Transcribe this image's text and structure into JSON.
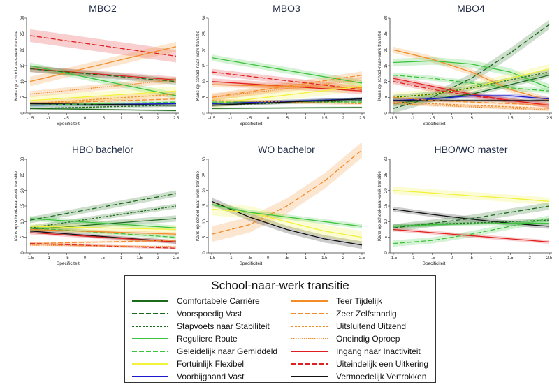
{
  "legend": {
    "title": "School-naar-werk transitie",
    "items": [
      {
        "name": "Comfortabele Carrière",
        "color": "#1b6b1b",
        "dash": "solid"
      },
      {
        "name": "Voorspoedig Vast",
        "color": "#1b6b1b",
        "dash": "long"
      },
      {
        "name": "Stapvoets naar Stabiliteit",
        "color": "#1b6b1b",
        "dash": "short"
      },
      {
        "name": "Reguliere Route",
        "color": "#3cc23c",
        "dash": "solid"
      },
      {
        "name": "Geleidelijk naar Gemiddeld",
        "color": "#3cc23c",
        "dash": "long"
      },
      {
        "name": "Fortuinlijk Flexibel",
        "color": "#f2f23a",
        "dash": "solid"
      },
      {
        "name": "Voorbijgaand Vast",
        "color": "#1a1acc",
        "dash": "solid"
      },
      {
        "name": "Teer Tijdelijk",
        "color": "#f28c28",
        "dash": "solid"
      },
      {
        "name": "Zeer Zelfstandig",
        "color": "#f28c28",
        "dash": "long"
      },
      {
        "name": "Uitsluitend Uitzend",
        "color": "#f28c28",
        "dash": "short"
      },
      {
        "name": "Oneindig Oproep",
        "color": "#f28c28",
        "dash": "dot"
      },
      {
        "name": "Ingang naar Inactiviteit",
        "color": "#e02020",
        "dash": "solid"
      },
      {
        "name": "Uiteindelijk een Uitkering",
        "color": "#e02020",
        "dash": "long"
      },
      {
        "name": "Vermoedelijk Vertrokken",
        "color": "#111111",
        "dash": "solid"
      }
    ]
  },
  "chart_data": [
    {
      "type": "line",
      "title": "MBO2",
      "xlabel": "Specificiteit",
      "ylabel": "Kans op school-naar-werk transitie",
      "xlim": [
        -1.5,
        2.5
      ],
      "ylim": [
        0,
        30
      ],
      "xticks": [
        "-1.5",
        "-1",
        "-.5",
        "0",
        ".5",
        "1",
        "1.5",
        "2",
        "2.5"
      ],
      "yticks": [
        "0",
        "5",
        "10",
        "15",
        "20",
        "25",
        "30"
      ],
      "x": [
        -1.5,
        2.5
      ],
      "series": [
        {
          "name": "Uiteindelijk een Uitkering",
          "values": [
            24.5,
            18
          ],
          "band": 2
        },
        {
          "name": "Teer Tijdelijk",
          "values": [
            10,
            21
          ],
          "band": 1.5
        },
        {
          "name": "Reguliere Route",
          "values": [
            15,
            5.5
          ],
          "band": 1
        },
        {
          "name": "Ingang naar Inactiviteit",
          "values": [
            14,
            10.5
          ],
          "band": 1
        },
        {
          "name": "Voorspoedig Vast",
          "values": [
            14,
            10
          ],
          "band": 1
        },
        {
          "name": "Oneindig Oproep",
          "values": [
            6,
            10.5
          ],
          "band": 1
        },
        {
          "name": "Fortuinlijk Flexibel",
          "values": [
            4,
            7
          ],
          "band": 1.5
        },
        {
          "name": "Uitsluitend Uitzend",
          "values": [
            3,
            6
          ],
          "band": 0.8
        },
        {
          "name": "Zeer Zelfstandig",
          "values": [
            3,
            4.5
          ],
          "band": 0.5
        },
        {
          "name": "Voorbijgaand Vast",
          "values": [
            2.5,
            3
          ],
          "band": 0.5
        },
        {
          "name": "Vermoedelijk Vertrokken",
          "values": [
            3,
            2.5
          ],
          "band": 0.5
        },
        {
          "name": "Geleidelijk naar Gemiddeld",
          "values": [
            2.5,
            3.5
          ],
          "band": 0.5
        },
        {
          "name": "Stapvoets naar Stabiliteit",
          "values": [
            1.5,
            2.5
          ],
          "band": 0.5
        },
        {
          "name": "Comfortabele Carrière",
          "values": [
            1.5,
            0.8
          ],
          "band": 0.3
        }
      ]
    },
    {
      "type": "line",
      "title": "MBO3",
      "xlabel": "Specificiteit",
      "ylabel": "Kans op school-naar-werk transitie",
      "xlim": [
        -1.5,
        2.5
      ],
      "ylim": [
        0,
        30
      ],
      "xticks": [
        "-1.5",
        "-1",
        "-.5",
        "0",
        ".5",
        "1",
        "1.5",
        "2",
        "2.5"
      ],
      "yticks": [
        "0",
        "5",
        "10",
        "15",
        "20",
        "25",
        "30"
      ],
      "x": [
        -1.5,
        2.5
      ],
      "series": [
        {
          "name": "Reguliere Route",
          "values": [
            17.5,
            9.5
          ],
          "band": 1
        },
        {
          "name": "Uiteindelijk een Uitkering",
          "values": [
            13,
            7.5
          ],
          "band": 1
        },
        {
          "name": "Ingang naar Inactiviteit",
          "values": [
            10,
            7
          ],
          "band": 1
        },
        {
          "name": "Teer Tijdelijk",
          "values": [
            9,
            8
          ],
          "band": 0.8
        },
        {
          "name": "Zeer Zelfstandig",
          "values": [
            5,
            12
          ],
          "band": 1.2
        },
        {
          "name": "Oneindig Oproep",
          "values": [
            5,
            10.5
          ],
          "band": 1
        },
        {
          "name": "Fortuinlijk Flexibel",
          "values": [
            3,
            8.5
          ],
          "band": 1.5
        },
        {
          "name": "Voorspoedig Vast",
          "values": [
            3,
            4.5
          ],
          "band": 0.5
        },
        {
          "name": "Geleidelijk naar Gemiddeld",
          "values": [
            3.5,
            3.5
          ],
          "band": 0.5
        },
        {
          "name": "Voorbijgaand Vast",
          "values": [
            3,
            4.5
          ],
          "band": 0.5
        },
        {
          "name": "Stapvoets naar Stabiliteit",
          "values": [
            2.5,
            4
          ],
          "band": 0.4
        },
        {
          "name": "Uitsluitend Uitzend",
          "values": [
            4,
            3
          ],
          "band": 0.5
        },
        {
          "name": "Vermoedelijk Vertrokken",
          "values": [
            2.5,
            4.5
          ],
          "band": 0.5
        },
        {
          "name": "Comfortabele Carrière",
          "values": [
            1.5,
            1.8
          ],
          "band": 0.3
        }
      ]
    },
    {
      "type": "line",
      "title": "MBO4",
      "xlabel": "Specificiteit",
      "ylabel": "Kans op school-naar-werk transitie",
      "xlim": [
        -1.5,
        2.5
      ],
      "ylim": [
        0,
        30
      ],
      "xticks": [
        "-1.5",
        "-1",
        "-.5",
        "0",
        ".5",
        "1",
        "1.5",
        "2",
        "2.5"
      ],
      "yticks": [
        "0",
        "5",
        "10",
        "15",
        "20",
        "25",
        "30"
      ],
      "x": [
        -1.5,
        -0.5,
        0.5,
        1.5,
        2.5
      ],
      "series": [
        {
          "name": "Voorspoedig Vast",
          "values": [
            1.5,
            5,
            11,
            19,
            28
          ],
          "band": 1.5
        },
        {
          "name": "Teer Tijdelijk",
          "values": [
            20,
            17,
            13,
            7.5,
            4
          ],
          "band": 1
        },
        {
          "name": "Reguliere Route",
          "values": [
            16,
            16.5,
            15.5,
            13,
            8
          ],
          "band": 1.2
        },
        {
          "name": "Geleidelijk naar Gemiddeld",
          "values": [
            12,
            11,
            9.5,
            8,
            7
          ],
          "band": 0.8
        },
        {
          "name": "Fortuinlijk Flexibel",
          "values": [
            5,
            6,
            8,
            11,
            14
          ],
          "band": 1.5
        },
        {
          "name": "Stapvoets naar Stabiliteit",
          "values": [
            5,
            6,
            8,
            10.5,
            13
          ],
          "band": 0.8
        },
        {
          "name": "Ingang naar Inactiviteit",
          "values": [
            11,
            8.5,
            6,
            4,
            2.5
          ],
          "band": 0.8
        },
        {
          "name": "Uiteindelijk een Uitkering",
          "values": [
            10,
            7.5,
            5.5,
            4,
            2.5
          ],
          "band": 0.8
        },
        {
          "name": "Comfortabele Carrière",
          "values": [
            3,
            4.5,
            6,
            9,
            12
          ],
          "band": 0.8
        },
        {
          "name": "Voorbijgaand Vast",
          "values": [
            4,
            4.5,
            5.5,
            5.5,
            4.5
          ],
          "band": 0.6
        },
        {
          "name": "Vermoedelijk Vertrokken",
          "values": [
            4,
            4,
            4,
            4,
            4
          ],
          "band": 0.5
        },
        {
          "name": "Zeer Zelfstandig",
          "values": [
            5,
            4,
            3.5,
            3,
            2.5
          ],
          "band": 0.5
        },
        {
          "name": "Oneindig Oproep",
          "values": [
            3,
            2.5,
            2,
            1.5,
            1
          ],
          "band": 0.4
        },
        {
          "name": "Uitsluitend Uitzend",
          "values": [
            3.5,
            3,
            2.5,
            2,
            1.5
          ],
          "band": 0.4
        }
      ]
    },
    {
      "type": "line",
      "title": "HBO bachelor",
      "xlabel": "Specificiteit",
      "ylabel": "Kans op school-naar-werk transitie",
      "xlim": [
        -1.5,
        2.5
      ],
      "ylim": [
        0,
        30
      ],
      "xticks": [
        "-1.5",
        "-1",
        "-.5",
        "0",
        ".5",
        "1",
        "1.5",
        "2",
        "2.5"
      ],
      "yticks": [
        "0",
        "5",
        "10",
        "15",
        "20",
        "25",
        "30"
      ],
      "x": [
        -1.5,
        2.5
      ],
      "series": [
        {
          "name": "Voorspoedig Vast",
          "values": [
            10.5,
            19
          ],
          "band": 1
        },
        {
          "name": "Stapvoets naar Stabiliteit",
          "values": [
            8,
            15
          ],
          "band": 0.8
        },
        {
          "name": "Comfortabele Carrière",
          "values": [
            7.5,
            11
          ],
          "band": 1
        },
        {
          "name": "Reguliere Route",
          "values": [
            11,
            8
          ],
          "band": 0.8
        },
        {
          "name": "Fortuinlijk Flexibel",
          "values": [
            8.5,
            7.5
          ],
          "band": 1
        },
        {
          "name": "Geleidelijk naar Gemiddeld",
          "values": [
            8,
            5
          ],
          "band": 0.6
        },
        {
          "name": "Teer Tijdelijk",
          "values": [
            7.5,
            6
          ],
          "band": 0.6
        },
        {
          "name": "Vermoedelijk Vertrokken",
          "values": [
            7,
            3.5
          ],
          "band": 0.6
        },
        {
          "name": "Ingang naar Inactiviteit",
          "values": [
            6.5,
            3.5
          ],
          "band": 0.6
        },
        {
          "name": "Zeer Zelfstandig",
          "values": [
            3,
            4
          ],
          "band": 0.4
        },
        {
          "name": "Uiteindelijk een Uitkering",
          "values": [
            3,
            1.5
          ],
          "band": 0.4
        },
        {
          "name": "Oneindig Oproep",
          "values": [
            2.5,
            2
          ],
          "band": 0.3
        }
      ]
    },
    {
      "type": "line",
      "title": "WO bachelor",
      "xlabel": "Specificiteit",
      "ylabel": "Kans op school-naar-werk transitie",
      "xlim": [
        -1.5,
        2.5
      ],
      "ylim": [
        0,
        30
      ],
      "xticks": [
        "-1.5",
        "-1",
        "-.5",
        "0",
        ".5",
        "1",
        "1.5",
        "2",
        "2.5"
      ],
      "yticks": [
        "0",
        "5",
        "10",
        "15",
        "20",
        "25",
        "30"
      ],
      "x": [
        -1.5,
        -0.5,
        0.5,
        1.5,
        2.5
      ],
      "series": [
        {
          "name": "Zeer Zelfstandig",
          "values": [
            6,
            9,
            15,
            23,
            33
          ],
          "band": 2.5
        },
        {
          "name": "Vermoedelijk Vertrokken",
          "values": [
            16.5,
            11.5,
            7.5,
            4.5,
            2.5
          ],
          "band": 1.2
        },
        {
          "name": "Fortuinlijk Flexibel",
          "values": [
            14,
            13,
            10,
            7,
            5
          ],
          "band": 2
        },
        {
          "name": "Reguliere Route",
          "values": [
            15.5,
            13,
            11.5,
            10,
            8.5
          ],
          "band": 0.8
        }
      ]
    },
    {
      "type": "line",
      "title": "HBO/WO master",
      "xlabel": "Specificiteit",
      "ylabel": "Kans op school-naar-werk transitie",
      "xlim": [
        -1.5,
        2.5
      ],
      "ylim": [
        0,
        30
      ],
      "xticks": [
        "-1.5",
        "-1",
        "-.5",
        "0",
        ".5",
        "1",
        "1.5",
        "2",
        "2.5"
      ],
      "yticks": [
        "0",
        "5",
        "10",
        "15",
        "20",
        "25",
        "30"
      ],
      "x": [
        -1.5,
        -0.5,
        0.5,
        1.5,
        2.5
      ],
      "series": [
        {
          "name": "Fortuinlijk Flexibel",
          "values": [
            20,
            19.2,
            18.3,
            17.5,
            16.5
          ],
          "band": 1.2
        },
        {
          "name": "Vermoedelijk Vertrokken",
          "values": [
            14,
            12.3,
            10.8,
            9.5,
            8.5
          ],
          "band": 0.8
        },
        {
          "name": "Voorspoedig Vast",
          "values": [
            8,
            9.5,
            11,
            13,
            15
          ],
          "band": 1.2
        },
        {
          "name": "Stapvoets naar Stabiliteit",
          "values": [
            8.5,
            9.2,
            9.6,
            10,
            10.5
          ],
          "band": 0.6
        },
        {
          "name": "Reguliere Route",
          "values": [
            8.5,
            9,
            9.3,
            9.5,
            9.5
          ],
          "band": 0.6
        },
        {
          "name": "Geleidelijk naar Gemiddeld",
          "values": [
            3,
            4,
            6,
            8.5,
            11
          ],
          "band": 1
        },
        {
          "name": "Ingang naar Inactiviteit",
          "values": [
            7.5,
            6.5,
            5.5,
            4.5,
            3.5
          ],
          "band": 0.6
        }
      ]
    }
  ]
}
